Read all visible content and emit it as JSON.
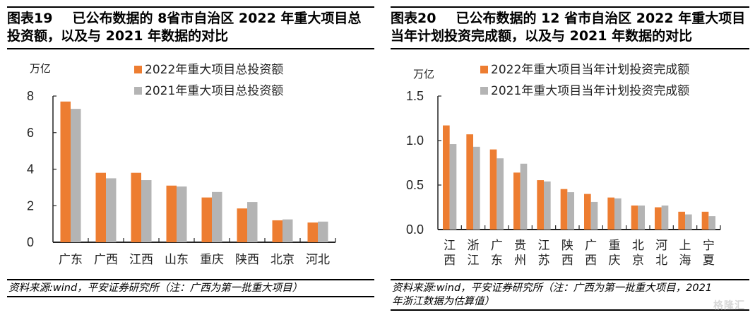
{
  "left": {
    "title_num": "图表19",
    "title_line1": "已公布数据的 8省市自治区 2022 年重大项目总",
    "title_line2": "投资额，以及与 2021 年数据的对比",
    "source": "资料来源:wind，平安证券研究所（注：广西为第一批重大项目）"
  },
  "right": {
    "title_num": "图表20",
    "title_line1": "已公布数据的 12 省市自治区 2022 年重大项目",
    "title_line2": "当年计划投资完成额，以及与 2021 年数据的对比",
    "source_line1": "资料来源:wind，平安证券研究所（注：广西为第一批重大项目，2021",
    "source_line2": "年浙江数据为估算值）",
    "watermark": "格隆汇"
  },
  "colors": {
    "series2022": "#ED7D31",
    "series2021": "#B4B4B4"
  },
  "chart_data": [
    {
      "type": "bar",
      "title": "已公布数据的 8省市自治区 2022 年重大项目总投资额，以及与 2021 年数据的对比",
      "ylabel": "万亿",
      "ylim": [
        0,
        8
      ],
      "yticks": [
        "0",
        "2",
        "4",
        "6",
        "8"
      ],
      "ytick_values": [
        0,
        2,
        4,
        6,
        8
      ],
      "categories": [
        "广东",
        "广西",
        "江西",
        "山东",
        "重庆",
        "陕西",
        "北京",
        "河北"
      ],
      "legend_position": "top-right",
      "series": [
        {
          "name": "2022年重大项目总投资额",
          "values": [
            7.7,
            3.8,
            3.8,
            3.1,
            2.45,
            1.85,
            1.2,
            1.08
          ]
        },
        {
          "name": "2021年重大项目总投资额",
          "values": [
            7.3,
            3.5,
            3.4,
            3.05,
            2.75,
            2.2,
            1.25,
            1.13
          ]
        }
      ]
    },
    {
      "type": "bar",
      "title": "已公布数据的 12 省市自治区 2022 年重大项目当年计划投资完成额，以及与 2021 年数据的对比",
      "ylabel": "万亿",
      "ylim": [
        0,
        1.5
      ],
      "yticks": [
        "0.0",
        "0.5",
        "1.0",
        "1.5"
      ],
      "ytick_values": [
        0,
        0.5,
        1.0,
        1.5
      ],
      "categories": [
        "江西",
        "浙江",
        "广东",
        "贵州",
        "江苏",
        "陕西",
        "广西",
        "重庆",
        "北京",
        "河北",
        "上海",
        "宁夏"
      ],
      "legend_position": "top-right",
      "series": [
        {
          "name": "2022年重大项目当年计划投资完成额",
          "values": [
            1.17,
            1.07,
            0.9,
            0.64,
            0.555,
            0.455,
            0.4,
            0.36,
            0.27,
            0.25,
            0.2,
            0.2
          ]
        },
        {
          "name": "2021年重大项目当年计划投资完成额",
          "values": [
            0.96,
            0.93,
            0.8,
            0.74,
            0.54,
            0.42,
            0.31,
            0.35,
            0.27,
            0.27,
            0.17,
            0.15
          ]
        }
      ]
    }
  ]
}
